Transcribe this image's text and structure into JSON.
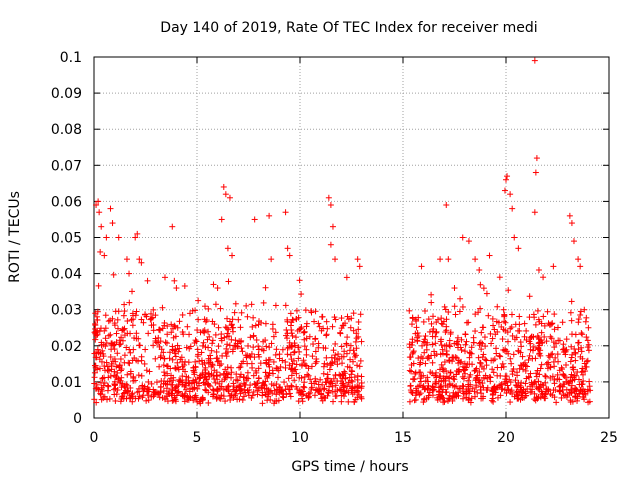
{
  "chart_data": {
    "type": "scatter",
    "title": "Day 140 of 2019, Rate Of TEC Index for receiver medi",
    "xlabel": "GPS time / hours",
    "ylabel": "ROTI / TECUs",
    "xlim": [
      0,
      25
    ],
    "ylim": [
      0,
      0.1
    ],
    "xticks": [
      0,
      5,
      10,
      15,
      20,
      25
    ],
    "yticks": [
      0,
      0.01,
      0.02,
      0.03,
      0.04,
      0.05,
      0.06,
      0.07,
      0.08,
      0.09,
      0.1
    ],
    "xtick_labels": [
      "0",
      "5",
      "10",
      "15",
      "20",
      "25"
    ],
    "ytick_labels": [
      "0",
      "0.01",
      "0.02",
      "0.03",
      "0.04",
      "0.05",
      "0.06",
      "0.07",
      "0.08",
      "0.09",
      "0.1"
    ],
    "grid": true,
    "marker": "+",
    "series_color": "#ff0000",
    "data_gap_hours": [
      13.0,
      15.3
    ],
    "series": [
      {
        "name": "ROTI",
        "points": [
          [
            0.1,
            0.059
          ],
          [
            0.2,
            0.06
          ],
          [
            0.25,
            0.057
          ],
          [
            0.3,
            0.046
          ],
          [
            0.35,
            0.053
          ],
          [
            0.5,
            0.045
          ],
          [
            0.6,
            0.05
          ],
          [
            0.8,
            0.058
          ],
          [
            0.9,
            0.054
          ],
          [
            1.2,
            0.05
          ],
          [
            1.6,
            0.044
          ],
          [
            1.7,
            0.04
          ],
          [
            2.0,
            0.05
          ],
          [
            2.1,
            0.051
          ],
          [
            2.2,
            0.044
          ],
          [
            2.3,
            0.043
          ],
          [
            2.6,
            0.038
          ],
          [
            3.8,
            0.053
          ],
          [
            3.9,
            0.038
          ],
          [
            4.0,
            0.036
          ],
          [
            5.8,
            0.037
          ],
          [
            6.0,
            0.036
          ],
          [
            6.3,
            0.064
          ],
          [
            6.4,
            0.062
          ],
          [
            6.5,
            0.047
          ],
          [
            6.6,
            0.061
          ],
          [
            6.7,
            0.045
          ],
          [
            6.2,
            0.055
          ],
          [
            7.8,
            0.055
          ],
          [
            8.5,
            0.056
          ],
          [
            8.6,
            0.044
          ],
          [
            9.3,
            0.057
          ],
          [
            9.4,
            0.047
          ],
          [
            9.5,
            0.045
          ],
          [
            11.4,
            0.061
          ],
          [
            11.5,
            0.059
          ],
          [
            11.6,
            0.053
          ],
          [
            11.7,
            0.044
          ],
          [
            11.5,
            0.048
          ],
          [
            12.8,
            0.044
          ],
          [
            12.9,
            0.042
          ],
          [
            15.9,
            0.042
          ],
          [
            16.8,
            0.044
          ],
          [
            17.1,
            0.059
          ],
          [
            17.2,
            0.044
          ],
          [
            17.5,
            0.036
          ],
          [
            17.9,
            0.05
          ],
          [
            18.2,
            0.049
          ],
          [
            18.5,
            0.044
          ],
          [
            18.7,
            0.041
          ],
          [
            19.2,
            0.045
          ],
          [
            19.7,
            0.039
          ],
          [
            20.0,
            0.066
          ],
          [
            20.05,
            0.067
          ],
          [
            19.95,
            0.063
          ],
          [
            20.2,
            0.062
          ],
          [
            20.3,
            0.058
          ],
          [
            20.4,
            0.05
          ],
          [
            20.6,
            0.047
          ],
          [
            21.4,
            0.099
          ],
          [
            21.5,
            0.072
          ],
          [
            21.45,
            0.068
          ],
          [
            21.4,
            0.057
          ],
          [
            21.6,
            0.041
          ],
          [
            21.8,
            0.039
          ],
          [
            22.3,
            0.042
          ],
          [
            23.1,
            0.056
          ],
          [
            23.2,
            0.054
          ],
          [
            23.3,
            0.049
          ],
          [
            23.5,
            0.044
          ],
          [
            23.6,
            0.042
          ],
          [
            23.8,
            0.03
          ],
          [
            24.0,
            0.025
          ]
        ]
      }
    ]
  }
}
